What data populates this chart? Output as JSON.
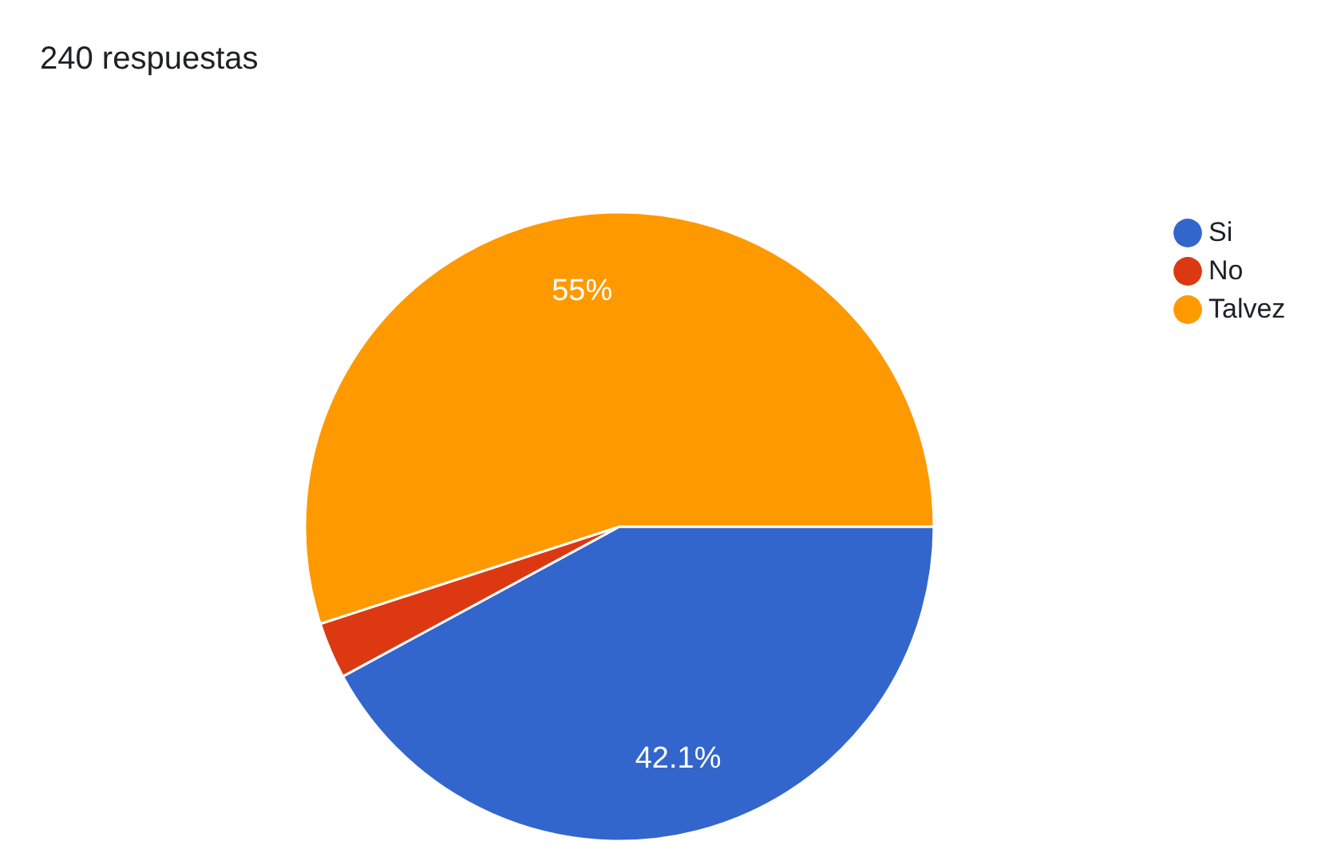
{
  "chart_data": {
    "type": "pie",
    "title": "240 respuestas",
    "categories": [
      "Si",
      "No",
      "Talvez"
    ],
    "values": [
      42.1,
      2.9,
      55
    ],
    "colors": [
      "#3366cc",
      "#dc3912",
      "#ff9900"
    ],
    "value_labels": [
      "42.1%",
      null,
      "55%"
    ],
    "legend": "right"
  }
}
